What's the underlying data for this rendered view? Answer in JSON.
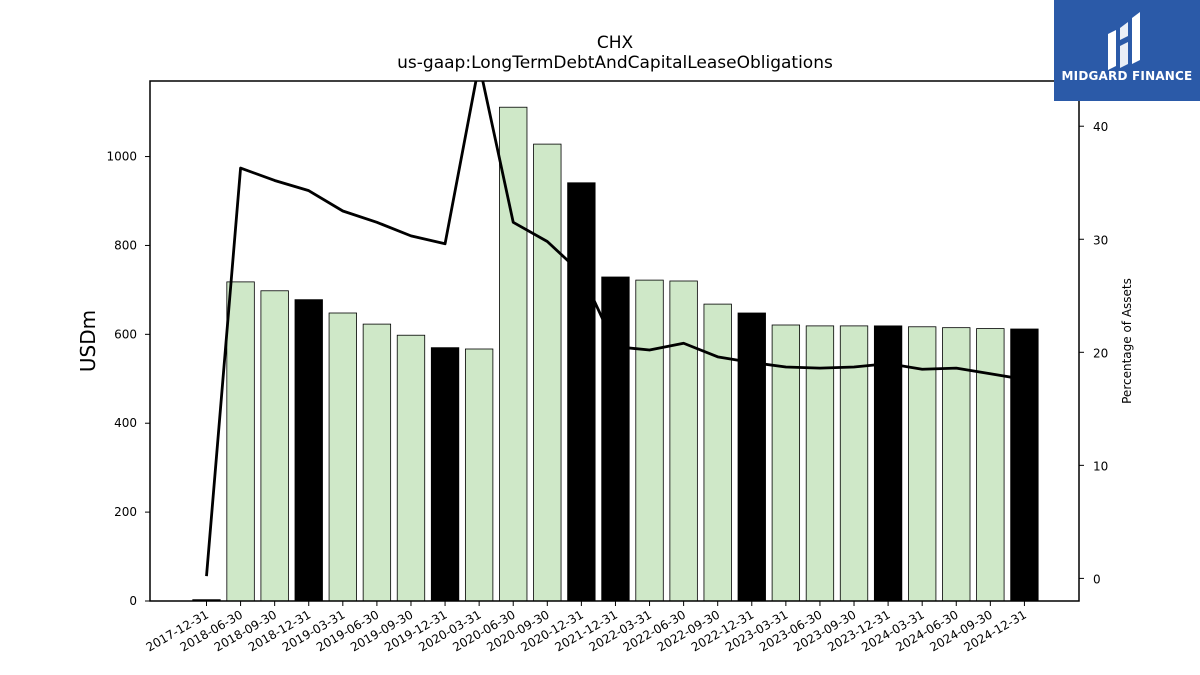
{
  "chart_data": {
    "type": "bar",
    "title": "CHX",
    "subtitle": "us-gaap:LongTermDebtAndCapitalLeaseObligations",
    "ylabel": "USDm",
    "y2label": "Percentage of Assets",
    "ylim": [
      0,
      1170
    ],
    "y2lim": [
      -2,
      44
    ],
    "yticks": [
      0,
      200,
      400,
      600,
      800,
      1000
    ],
    "y2ticks": [
      0,
      10,
      20,
      30,
      40
    ],
    "grid": false,
    "categories": [
      "2017-12-31",
      "2018-06-30",
      "2018-09-30",
      "2018-12-31",
      "2019-03-31",
      "2019-06-30",
      "2019-09-30",
      "2019-12-31",
      "2020-03-31",
      "2020-06-30",
      "2020-09-30",
      "2020-12-31",
      "2021-12-31",
      "2022-03-31",
      "2022-06-30",
      "2022-09-30",
      "2022-12-31",
      "2023-03-31",
      "2023-06-30",
      "2023-09-30",
      "2023-12-31",
      "2024-03-31",
      "2024-06-30",
      "2024-09-30",
      "2024-12-31"
    ],
    "series": [
      {
        "type": "bar",
        "values": [
          3,
          718,
          698,
          678,
          648,
          623,
          598,
          570,
          567,
          1111,
          1028,
          941,
          729,
          722,
          720,
          668,
          648,
          621,
          619,
          619,
          619,
          617,
          615,
          613,
          612
        ],
        "bar_colors": [
          "#000000",
          "#cfe8c8",
          "#cfe8c8",
          "#000000",
          "#cfe8c8",
          "#cfe8c8",
          "#cfe8c8",
          "#000000",
          "#cfe8c8",
          "#cfe8c8",
          "#cfe8c8",
          "#000000",
          "#000000",
          "#cfe8c8",
          "#cfe8c8",
          "#cfe8c8",
          "#000000",
          "#cfe8c8",
          "#cfe8c8",
          "#cfe8c8",
          "#000000",
          "#cfe8c8",
          "#cfe8c8",
          "#cfe8c8",
          "#000000"
        ]
      },
      {
        "type": "line",
        "axis": "right",
        "color": "#000000",
        "values": [
          0.2,
          36.3,
          35.2,
          34.3,
          32.5,
          31.5,
          30.3,
          29.6,
          45.5,
          31.5,
          29.8,
          27.0,
          20.5,
          20.2,
          20.8,
          19.6,
          19.1,
          18.7,
          18.6,
          18.7,
          19.0,
          18.5,
          18.6,
          18.1,
          17.6
        ]
      }
    ]
  },
  "logo": {
    "text": "MIDGARD FINANCE",
    "bg_color": "#2b5aa8"
  }
}
